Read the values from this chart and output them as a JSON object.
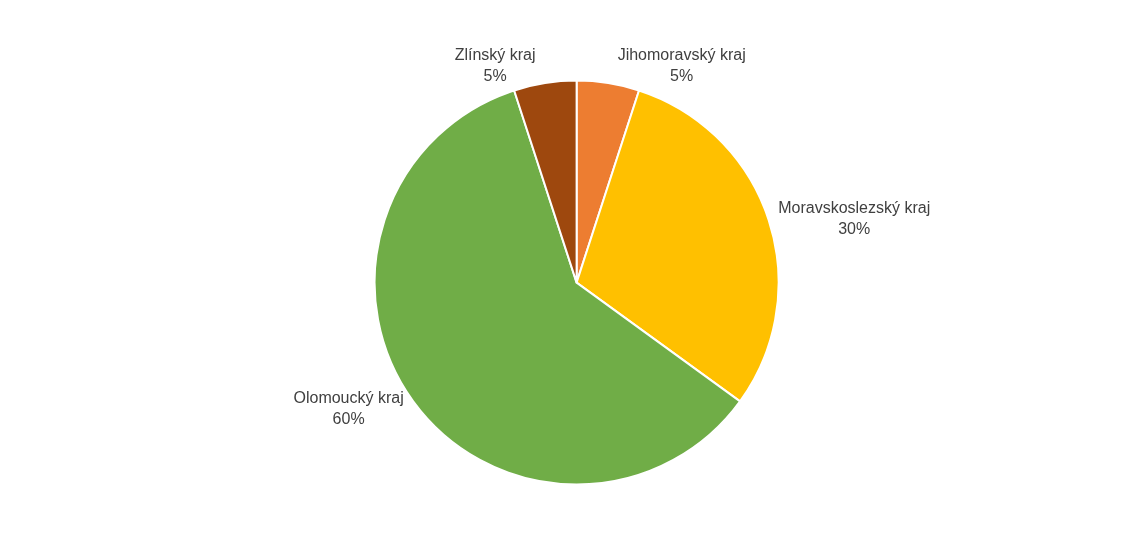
{
  "chart_data": {
    "type": "pie",
    "categories": [
      "Jihomoravský kraj",
      "Moravskoslezský kraj",
      "Olomoucký kraj",
      "Zlínský kraj"
    ],
    "values": [
      5,
      30,
      60,
      5
    ],
    "value_labels": [
      "5%",
      "30%",
      "60%",
      "5%"
    ],
    "colors": [
      "#ed7d31",
      "#ffc000",
      "#70ad47",
      "#9e480e"
    ],
    "legend": false
  }
}
